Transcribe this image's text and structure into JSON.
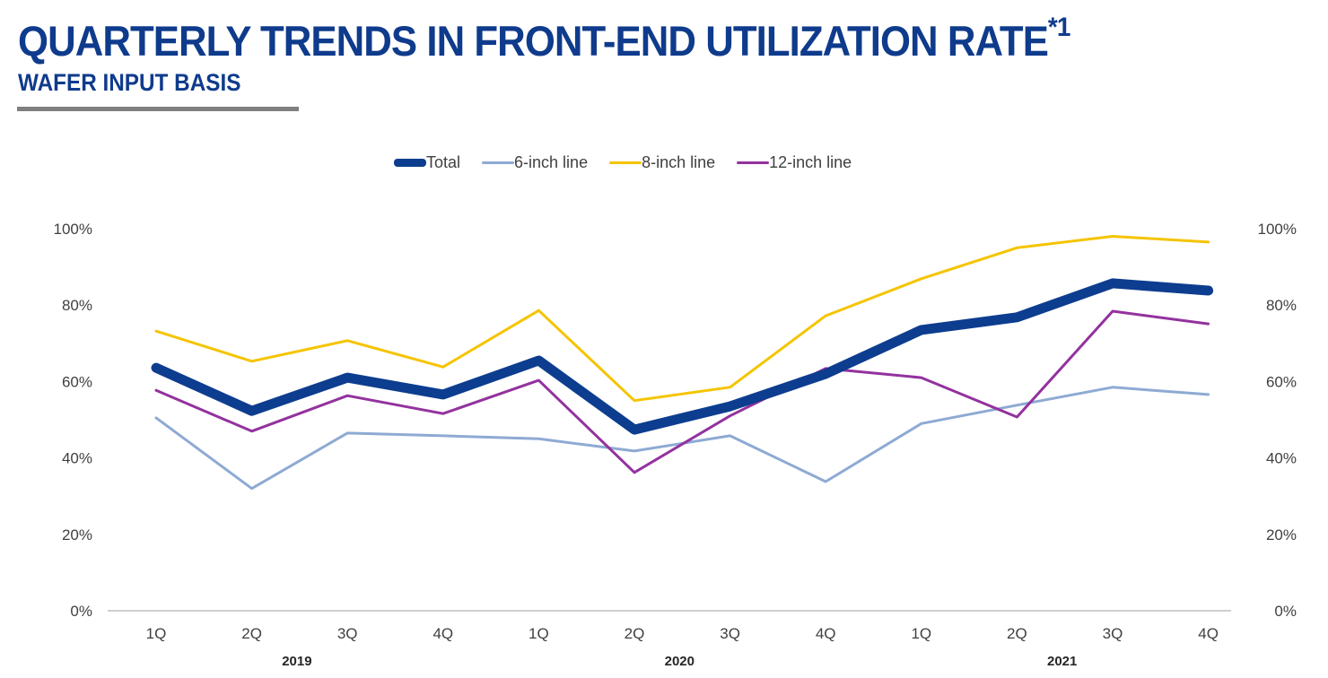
{
  "header": {
    "title": "QUARTERLY TRENDS IN FRONT-END UTILIZATION RATE",
    "title_footnote": "*1",
    "subtitle": "WAFER INPUT BASIS"
  },
  "chart_data": {
    "type": "line",
    "title": "QUARTERLY TRENDS IN FRONT-END UTILIZATION RATE*1",
    "subtitle": "WAFER INPUT BASIS",
    "xlabel": "",
    "ylabel": "",
    "categories": [
      "1Q",
      "2Q",
      "3Q",
      "4Q",
      "1Q",
      "2Q",
      "3Q",
      "4Q",
      "1Q",
      "2Q",
      "3Q",
      "4Q"
    ],
    "year_groups": [
      {
        "label": "2019",
        "start": 0,
        "end": 3
      },
      {
        "label": "2020",
        "start": 4,
        "end": 7
      },
      {
        "label": "2021",
        "start": 8,
        "end": 11
      }
    ],
    "ylim": [
      0,
      100
    ],
    "yticks": [
      0,
      20,
      40,
      60,
      80,
      100
    ],
    "ytick_labels": [
      "0%",
      "20%",
      "40%",
      "60%",
      "80%",
      "100%"
    ],
    "secondary_y_axis": true,
    "grid": false,
    "legend_position": "top-center",
    "series": [
      {
        "name": "Total",
        "color": "#0d3d8f",
        "emphasis": "thick",
        "values": [
          63.6,
          52.3,
          61.0,
          56.6,
          65.5,
          47.4,
          53.5,
          62.0,
          73.5,
          76.8,
          85.7,
          83.8
        ]
      },
      {
        "name": "6-inch line",
        "color": "#8eaad3",
        "emphasis": "normal",
        "values": [
          50.5,
          32.0,
          46.5,
          45.8,
          45.0,
          41.8,
          45.8,
          33.8,
          49.0,
          53.8,
          58.5,
          56.6
        ]
      },
      {
        "name": "8-inch line",
        "color": "#f5c400",
        "emphasis": "normal",
        "values": [
          73.2,
          65.3,
          70.7,
          63.8,
          78.6,
          55.0,
          58.5,
          77.2,
          86.9,
          95.0,
          98.0,
          96.5
        ]
      },
      {
        "name": "12-inch line",
        "color": "#93329e",
        "emphasis": "normal",
        "values": [
          57.7,
          47.0,
          56.3,
          51.6,
          60.3,
          36.2,
          51.0,
          63.4,
          61.0,
          50.7,
          78.4,
          75.1
        ]
      }
    ]
  }
}
